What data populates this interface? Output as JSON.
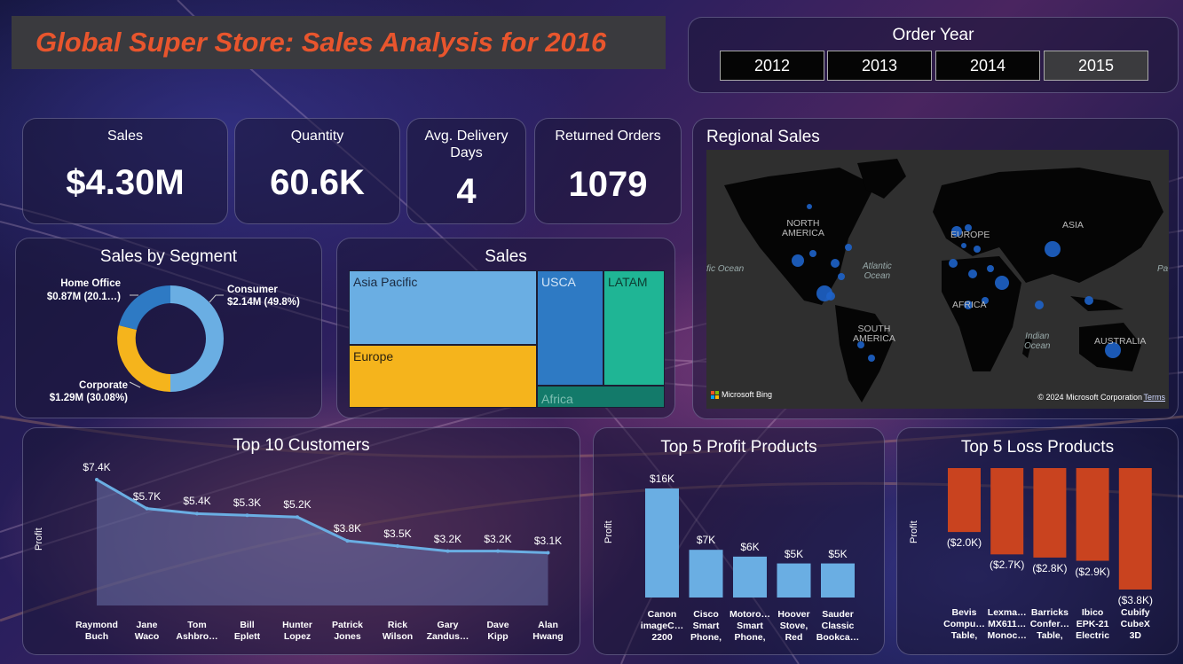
{
  "header": {
    "title": "Global Super Store: Sales Analysis for 2016"
  },
  "order_year": {
    "label": "Order Year",
    "years": [
      "2012",
      "2013",
      "2014",
      "2015"
    ],
    "selected": "2015"
  },
  "kpis": {
    "sales": {
      "label": "Sales",
      "value": "$4.30M"
    },
    "quantity": {
      "label": "Quantity",
      "value": "60.6K"
    },
    "delivery": {
      "label": "Avg. Delivery Days",
      "value": "4"
    },
    "returned": {
      "label": "Returned Orders",
      "value": "1079"
    }
  },
  "segment": {
    "title": "Sales by Segment",
    "labels": {
      "home": "Home Office",
      "home_val": "$0.87M (20.1…)",
      "consumer": "Consumer",
      "consumer_val": "$2.14M (49.8%)",
      "corporate": "Corporate",
      "corporate_val": "$1.29M (30.08%)"
    },
    "colors": {
      "consumer": "#6aaee3",
      "corporate": "#f5b41c",
      "home": "#2e7ac4"
    }
  },
  "treemap": {
    "title": "Sales",
    "labels": {
      "asia": "Asia Pacific",
      "europe": "Europe",
      "usca": "USCA",
      "latam": "LATAM",
      "africa": "Africa"
    }
  },
  "map": {
    "title": "Regional Sales",
    "labels": {
      "na": "NORTH\nAMERICA",
      "eu": "EUROPE",
      "asia": "ASIA",
      "africa": "AFRICA",
      "sa": "SOUTH\nAMERICA",
      "au": "AUSTRALIA",
      "atlantic": "Atlantic\nOcean",
      "indian": "Indian\nOcean",
      "pacific_l": "fic Ocean",
      "pacific_r": "Pa"
    },
    "attribution": "Microsoft Bing",
    "copyright": "© 2024 Microsoft Corporation",
    "terms": "Terms"
  },
  "chart_data": [
    {
      "type": "area",
      "title": "Top 10 Customers",
      "ylabel": "Profit",
      "xlabel": "",
      "categories": [
        "Raymond\nBuch",
        "Jane\nWaco",
        "Tom\nAshbro…",
        "Bill\nEplett",
        "Hunter\nLopez",
        "Patrick\nJones",
        "Rick\nWilson",
        "Gary\nZandus…",
        "Dave\nKipp",
        "Alan\nHwang"
      ],
      "values": [
        7.4,
        5.7,
        5.4,
        5.3,
        5.2,
        3.8,
        3.5,
        3.2,
        3.2,
        3.1
      ],
      "data_labels": [
        "$7.4K",
        "$5.7K",
        "$5.4K",
        "$5.3K",
        "$5.2K",
        "$3.8K",
        "$3.5K",
        "$3.2K",
        "$3.2K",
        "$3.1K"
      ]
    },
    {
      "type": "bar",
      "title": "Top 5 Profit Products",
      "ylabel": "Profit",
      "xlabel": "",
      "categories": [
        "Canon\nimageC…\n2200",
        "Cisco\nSmart\nPhone,",
        "Motoro…\nSmart\nPhone,",
        "Hoover\nStove,\nRed",
        "Sauder\nClassic\nBookca…"
      ],
      "values": [
        16,
        7,
        6,
        5,
        5
      ],
      "data_labels": [
        "$16K",
        "$7K",
        "$6K",
        "$5K",
        "$5K"
      ],
      "color": "#6aaee3"
    },
    {
      "type": "bar",
      "title": "Top 5 Loss Products",
      "ylabel": "Profit",
      "xlabel": "",
      "categories": [
        "Bevis\nCompu…\nTable,",
        "Lexma…\nMX611…\nMonoc…",
        "Barricks\nConfer…\nTable,",
        "Ibico\nEPK-21\nElectric",
        "Cubify\nCubeX\n3D"
      ],
      "values": [
        -2.0,
        -2.7,
        -2.8,
        -2.9,
        -3.8
      ],
      "data_labels": [
        "($2.0K)",
        "($2.7K)",
        "($2.8K)",
        "($2.9K)",
        "($3.8K)"
      ],
      "color": "#c9431f"
    }
  ]
}
